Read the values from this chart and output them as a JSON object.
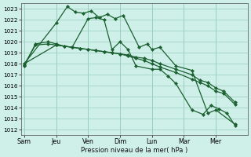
{
  "background_color": "#cff0e8",
  "grid_color": "#99ccbb",
  "line_color": "#1a6030",
  "marker_color": "#1a6030",
  "xlabel": "Pression niveau de la mer( hPa )",
  "ylim": [
    1011.5,
    1023.5
  ],
  "yticks": [
    1012,
    1013,
    1014,
    1015,
    1016,
    1017,
    1018,
    1019,
    1020,
    1021,
    1022,
    1023
  ],
  "day_labels": [
    "Sam",
    "Jeu",
    "Ven",
    "Dim",
    "Lun",
    "Mar",
    "Mer"
  ],
  "day_positions": [
    0,
    2,
    4,
    6,
    8,
    10,
    12
  ],
  "xlim": [
    -0.2,
    14.0
  ],
  "series1_x": [
    0,
    2,
    2.7,
    3.2,
    3.7,
    4.2,
    4.7,
    5.2,
    5.7,
    6.2,
    7.2,
    7.7,
    8.0,
    8.5,
    9.5,
    10.5,
    11.5,
    12.0,
    13.2
  ],
  "series1_y": [
    1018.0,
    1021.7,
    1023.2,
    1022.7,
    1022.6,
    1022.8,
    1022.2,
    1022.5,
    1022.1,
    1022.4,
    1019.5,
    1019.8,
    1019.3,
    1019.5,
    1017.8,
    1017.4,
    1013.5,
    1013.8,
    1012.5
  ],
  "series2_x": [
    0,
    0.7,
    1.5,
    2,
    2.5,
    3.0,
    3.5,
    4.0,
    4.5,
    5.0,
    5.5,
    6.0,
    6.5,
    7.0,
    7.5,
    8.0,
    8.5,
    9.5,
    10.5,
    11.0,
    11.5,
    12.0,
    12.5,
    13.2
  ],
  "series2_y": [
    1017.8,
    1019.8,
    1020.0,
    1019.8,
    1019.6,
    1019.5,
    1019.4,
    1019.3,
    1019.2,
    1019.1,
    1019.0,
    1018.9,
    1018.8,
    1018.6,
    1018.5,
    1018.3,
    1018.0,
    1017.5,
    1017.0,
    1016.5,
    1016.3,
    1015.8,
    1015.5,
    1014.5
  ],
  "series3_x": [
    0,
    0.7,
    1.5,
    2,
    2.5,
    3.0,
    3.5,
    4.0,
    4.5,
    5.0,
    5.5,
    6.0,
    6.5,
    7.0,
    7.5,
    8.0,
    8.5,
    9.5,
    10.5,
    11.0,
    11.5,
    12.0,
    12.5,
    13.2
  ],
  "series3_y": [
    1017.9,
    1019.7,
    1019.8,
    1019.7,
    1019.6,
    1019.5,
    1019.4,
    1019.3,
    1019.2,
    1019.1,
    1019.0,
    1018.9,
    1018.7,
    1018.5,
    1018.3,
    1018.0,
    1017.7,
    1017.2,
    1016.6,
    1016.3,
    1016.0,
    1015.5,
    1015.3,
    1014.3
  ],
  "series4_x": [
    0,
    2,
    3,
    4,
    4.5,
    5.0,
    5.5,
    6.0,
    6.5,
    7.0,
    8.0,
    8.5,
    9.0,
    9.5,
    10.5,
    11.2,
    11.7,
    12.2,
    12.7,
    13.2
  ],
  "series4_y": [
    1018.0,
    1019.7,
    1019.5,
    1022.1,
    1022.2,
    1022.0,
    1019.3,
    1020.0,
    1019.3,
    1017.8,
    1017.5,
    1017.5,
    1016.9,
    1016.2,
    1013.8,
    1013.4,
    1014.2,
    1013.9,
    1013.5,
    1012.4
  ]
}
